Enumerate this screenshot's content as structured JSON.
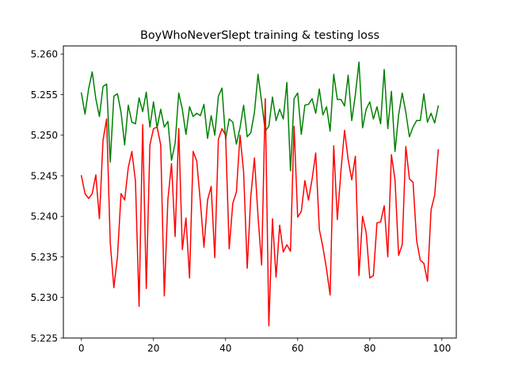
{
  "chart_data": {
    "type": "line",
    "title": "BoyWhoNeverSlept training & testing loss",
    "xlabel": "",
    "ylabel": "",
    "xlim": [
      -5,
      104
    ],
    "ylim": [
      5.225,
      5.261
    ],
    "grid": false,
    "xticks": [
      0,
      20,
      40,
      60,
      80,
      100
    ],
    "xtick_labels": [
      "0",
      "20",
      "40",
      "60",
      "80",
      "100"
    ],
    "yticks": [
      5.225,
      5.23,
      5.235,
      5.24,
      5.245,
      5.25,
      5.255,
      5.26
    ],
    "ytick_labels": [
      "5.225",
      "5.230",
      "5.235",
      "5.240",
      "5.245",
      "5.250",
      "5.255",
      "5.260"
    ],
    "x": [
      0,
      1,
      2,
      3,
      4,
      5,
      6,
      7,
      8,
      9,
      10,
      11,
      12,
      13,
      14,
      15,
      16,
      17,
      18,
      19,
      20,
      21,
      22,
      23,
      24,
      25,
      26,
      27,
      28,
      29,
      30,
      31,
      32,
      33,
      34,
      35,
      36,
      37,
      38,
      39,
      40,
      41,
      42,
      43,
      44,
      45,
      46,
      47,
      48,
      49,
      50,
      51,
      52,
      53,
      54,
      55,
      56,
      57,
      58,
      59,
      60,
      61,
      62,
      63,
      64,
      65,
      66,
      67,
      68,
      69,
      70,
      71,
      72,
      73,
      74,
      75,
      76,
      77,
      78,
      79,
      80,
      81,
      82,
      83,
      84,
      85,
      86,
      87,
      88,
      89,
      90,
      91,
      92,
      93,
      94,
      95,
      96,
      97,
      98,
      99
    ],
    "series": [
      {
        "color": "#008000",
        "values": [
          5.2552,
          5.2526,
          5.2557,
          5.2578,
          5.2545,
          5.2523,
          5.256,
          5.2563,
          5.2467,
          5.2548,
          5.2551,
          5.2528,
          5.2488,
          5.2537,
          5.2516,
          5.2514,
          5.2546,
          5.2529,
          5.2553,
          5.251,
          5.2541,
          5.2509,
          5.2532,
          5.251,
          5.2517,
          5.2469,
          5.249,
          5.2552,
          5.2532,
          5.2501,
          5.2535,
          5.2523,
          5.2527,
          5.2524,
          5.2538,
          5.2496,
          5.2524,
          5.25,
          5.2548,
          5.2558,
          5.2495,
          5.252,
          5.2516,
          5.2489,
          5.2509,
          5.2537,
          5.2498,
          5.2503,
          5.2528,
          5.2575,
          5.2541,
          5.2505,
          5.2511,
          5.2547,
          5.2518,
          5.2532,
          5.252,
          5.2565,
          5.2456,
          5.2545,
          5.2552,
          5.2501,
          5.2537,
          5.2538,
          5.2545,
          5.2527,
          5.2557,
          5.2525,
          5.2535,
          5.2505,
          5.2575,
          5.2544,
          5.2544,
          5.2536,
          5.2574,
          5.2518,
          5.255,
          5.259,
          5.2509,
          5.2532,
          5.2541,
          5.252,
          5.2535,
          5.2514,
          5.2581,
          5.2508,
          5.2554,
          5.248,
          5.2525,
          5.2552,
          5.2528,
          5.2498,
          5.251,
          5.2518,
          5.2518,
          5.2551,
          5.2516,
          5.2527,
          5.2515,
          5.2536
        ]
      },
      {
        "color": "#ff0000",
        "values": [
          5.245,
          5.2428,
          5.2422,
          5.2428,
          5.2451,
          5.2397,
          5.2494,
          5.252,
          5.2368,
          5.2312,
          5.235,
          5.2428,
          5.242,
          5.246,
          5.248,
          5.2443,
          5.2289,
          5.2513,
          5.2311,
          5.2488,
          5.2508,
          5.251,
          5.2488,
          5.2302,
          5.2421,
          5.2465,
          5.2375,
          5.2508,
          5.2359,
          5.2398,
          5.2324,
          5.248,
          5.2468,
          5.2418,
          5.2362,
          5.242,
          5.2437,
          5.2349,
          5.2495,
          5.2508,
          5.25,
          5.236,
          5.2416,
          5.243,
          5.25,
          5.2455,
          5.2336,
          5.2425,
          5.2472,
          5.24,
          5.234,
          5.2545,
          5.2265,
          5.2397,
          5.2325,
          5.2389,
          5.2356,
          5.2365,
          5.2357,
          5.2511,
          5.2399,
          5.2406,
          5.2444,
          5.242,
          5.2446,
          5.2478,
          5.2384,
          5.2362,
          5.2335,
          5.2303,
          5.2487,
          5.2396,
          5.2456,
          5.2506,
          5.247,
          5.2445,
          5.2474,
          5.2327,
          5.24,
          5.238,
          5.2324,
          5.2327,
          5.2392,
          5.2393,
          5.2413,
          5.235,
          5.2476,
          5.2445,
          5.2352,
          5.2365,
          5.2486,
          5.2446,
          5.2442,
          5.237,
          5.2346,
          5.2342,
          5.232,
          5.2408,
          5.2426,
          5.2482
        ]
      }
    ]
  }
}
